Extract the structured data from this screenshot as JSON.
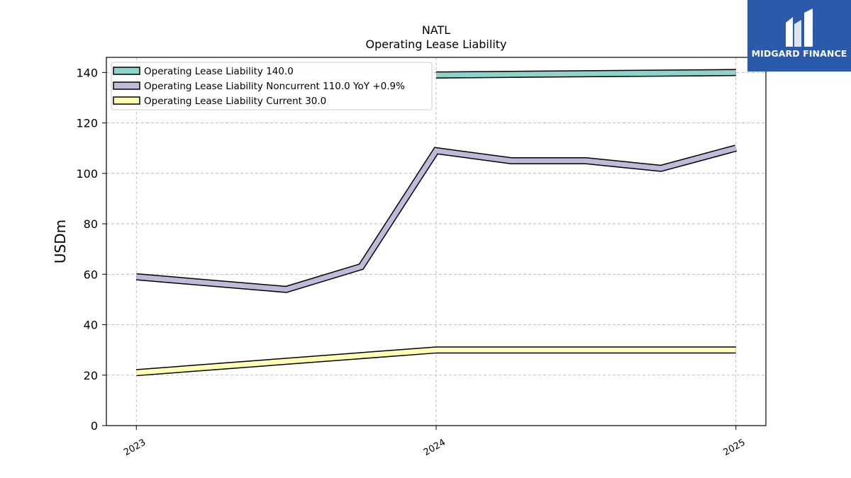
{
  "chart_data": {
    "type": "line",
    "title": "NATL",
    "subtitle": "Operating Lease Liability",
    "xlabel": "",
    "ylabel": "USDm",
    "ylim": [
      0,
      146
    ],
    "yticks": [
      0,
      20,
      40,
      60,
      80,
      100,
      120,
      140
    ],
    "xticks": [
      {
        "label": "2023",
        "x": 0
      },
      {
        "label": "2024",
        "x": 4
      },
      {
        "label": "2025",
        "x": 8
      }
    ],
    "xlim": [
      -0.4,
      8.4
    ],
    "grid": true,
    "legend_position": "top-left",
    "series": [
      {
        "name": "Operating Lease Liability",
        "legend_label": "Operating Lease Liability  140.0",
        "color": "#8dd3c7",
        "points": [
          [
            4,
            139.0
          ],
          [
            8,
            140.0
          ]
        ]
      },
      {
        "name": "Operating Lease Liability Noncurrent",
        "legend_label": "Operating Lease Liability Noncurrent  110.0 YoY +0.9%",
        "color": "#bebada",
        "points": [
          [
            0,
            59.0
          ],
          [
            2,
            54.0
          ],
          [
            3,
            63.0
          ],
          [
            4,
            109.0
          ],
          [
            5,
            105.0
          ],
          [
            6,
            105.0
          ],
          [
            7,
            102.0
          ],
          [
            8,
            110.0
          ]
        ]
      },
      {
        "name": "Operating Lease Liability Current",
        "legend_label": "Operating Lease Liability Current  30.0",
        "color": "#ffffb3",
        "points": [
          [
            0,
            21.0
          ],
          [
            4,
            30.0
          ],
          [
            8,
            30.0
          ]
        ]
      }
    ]
  },
  "branding": {
    "logo_text": "MIDGARD FINANCE",
    "logo_color": "#2b5aab"
  }
}
